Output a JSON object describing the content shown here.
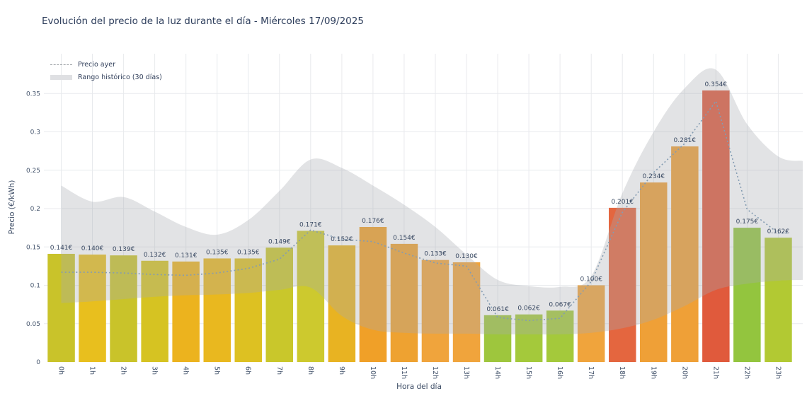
{
  "title": "Evolución del precio de la luz durante el día - Miércoles 17/09/2025",
  "legend": {
    "yesterday_label": "Precio ayer",
    "range_label": "Rango histórico (30 días)"
  },
  "chart_data": {
    "type": "bar",
    "title": "Evolución del precio de la luz durante el día - Miércoles 17/09/2025",
    "xlabel": "Hora del día",
    "ylabel": "Precio (€/kWh)",
    "categories": [
      "0h",
      "1h",
      "2h",
      "3h",
      "4h",
      "5h",
      "6h",
      "7h",
      "8h",
      "9h",
      "10h",
      "11h",
      "12h",
      "13h",
      "14h",
      "15h",
      "16h",
      "17h",
      "18h",
      "19h",
      "20h",
      "21h",
      "22h",
      "23h"
    ],
    "values": [
      0.141,
      0.14,
      0.139,
      0.132,
      0.131,
      0.135,
      0.135,
      0.149,
      0.171,
      0.152,
      0.176,
      0.154,
      0.133,
      0.13,
      0.061,
      0.062,
      0.067,
      0.1,
      0.201,
      0.234,
      0.281,
      0.354,
      0.175,
      0.162
    ],
    "value_labels": [
      "0.141€",
      "0.140€",
      "0.139€",
      "0.132€",
      "0.131€",
      "0.135€",
      "0.135€",
      "0.149€",
      "0.171€",
      "0.152€",
      "0.176€",
      "0.154€",
      "0.133€",
      "0.130€",
      "0.061€",
      "0.062€",
      "0.067€",
      "0.100€",
      "0.201€",
      "0.234€",
      "0.281€",
      "0.354€",
      "0.175€",
      "0.162€"
    ],
    "bar_colors": [
      "#c9c32a",
      "#e8bf1e",
      "#c9c32a",
      "#d6c322",
      "#ecb31e",
      "#e9b81f",
      "#ddc122",
      "#c9c72b",
      "#cdc92e",
      "#e8b322",
      "#f0a028",
      "#eea231",
      "#f0a43c",
      "#f0a43c",
      "#9ec63d",
      "#a4c93b",
      "#a4c93b",
      "#f0a43c",
      "#e4663f",
      "#efa037",
      "#efa037",
      "#e05a3c",
      "#93c53e",
      "#b2c933"
    ],
    "series": [
      {
        "name": "Precio ayer",
        "type": "line",
        "style": "dashed",
        "values": [
          0.117,
          0.117,
          0.116,
          0.114,
          0.113,
          0.116,
          0.122,
          0.134,
          0.172,
          0.16,
          0.157,
          0.142,
          0.129,
          0.125,
          0.058,
          0.054,
          0.057,
          0.105,
          0.195,
          0.247,
          0.285,
          0.34,
          0.199,
          0.168
        ]
      },
      {
        "name": "Rango histórico (30 días)",
        "type": "band",
        "top": [
          0.23,
          0.209,
          0.215,
          0.196,
          0.176,
          0.166,
          0.185,
          0.223,
          0.264,
          0.253,
          0.23,
          0.205,
          0.176,
          0.14,
          0.107,
          0.099,
          0.098,
          0.112,
          0.22,
          0.3,
          0.357,
          0.381,
          0.31,
          0.268
        ],
        "bottom": [
          0.077,
          0.079,
          0.082,
          0.085,
          0.087,
          0.088,
          0.09,
          0.094,
          0.097,
          0.06,
          0.042,
          0.038,
          0.037,
          0.037,
          0.036,
          0.036,
          0.036,
          0.038,
          0.044,
          0.055,
          0.073,
          0.094,
          0.102,
          0.106
        ]
      }
    ],
    "yticks": [
      0,
      0.05,
      0.1,
      0.15,
      0.2,
      0.25,
      0.3,
      0.35
    ],
    "ytick_labels": [
      "0",
      "0.05",
      "0.1",
      "0.15",
      "0.2",
      "0.25",
      "0.3",
      "0.35"
    ],
    "ylim": [
      0,
      0.38
    ],
    "grid": true,
    "legend_position": "upper-left",
    "colors": {
      "band_overlay": "rgba(168,171,176,0.33)",
      "band_apparent": "#e4e5e7",
      "yesterday_line": "#849cb2",
      "grid": "#e8eaed",
      "bar_label_text": "#3a4a63",
      "tick_text": "#44546c",
      "title_text": "#2e3e5c",
      "axis_label_text": "#3a4a63",
      "legend_text": "#33415c",
      "legend_line": "#a3a7ab",
      "legend_band": "#dfe0e3"
    }
  }
}
